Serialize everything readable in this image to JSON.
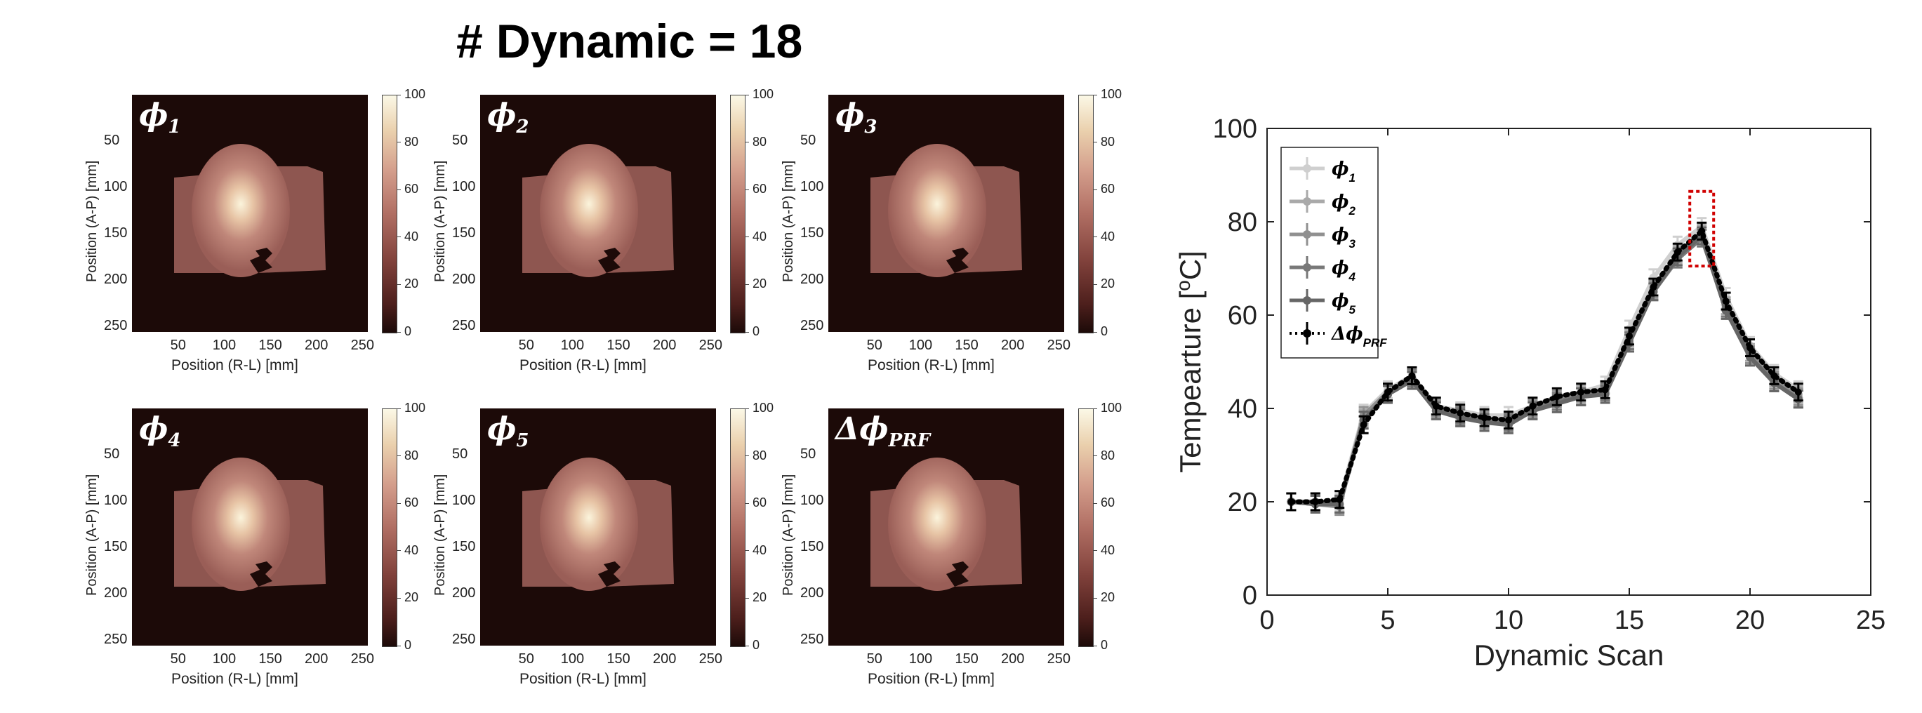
{
  "figure": {
    "title": "# Dynamic = 18"
  },
  "heatmaps": {
    "xlabel": "Position (R-L) [mm]",
    "ylabel": "Position (A-P) [mm]",
    "xticks": [
      "50",
      "100",
      "150",
      "200",
      "250"
    ],
    "yticks": [
      "50",
      "100",
      "150",
      "200",
      "250"
    ],
    "colorbar_ticks": [
      "0",
      "20",
      "40",
      "60",
      "80",
      "100"
    ],
    "colormap": [
      "#1c0a08",
      "#80413b",
      "#d39d8b",
      "#fbf8e6"
    ],
    "panels": [
      {
        "symbol": "ϕ",
        "sub": "1"
      },
      {
        "symbol": "ϕ",
        "sub": "2"
      },
      {
        "symbol": "ϕ",
        "sub": "3"
      },
      {
        "symbol": "ϕ",
        "sub": "4"
      },
      {
        "symbol": "ϕ",
        "sub": "5"
      },
      {
        "symbol": "Δϕ",
        "sub": "PRF"
      }
    ]
  },
  "chart_data": {
    "type": "line",
    "title": "",
    "xlabel": "Dynamic Scan",
    "ylabel": "Tempearture [",
    "ylabel_sup": "o",
    "ylabel_unit": "C]",
    "xlim": [
      0,
      25
    ],
    "ylim": [
      0,
      100
    ],
    "xticks": [
      "0",
      "5",
      "10",
      "15",
      "20",
      "25"
    ],
    "yticks": [
      "0",
      "20",
      "40",
      "60",
      "80",
      "100"
    ],
    "grid": false,
    "legend_position": "top-left",
    "highlight_dynamic": 18,
    "x": [
      1,
      2,
      3,
      4,
      5,
      6,
      7,
      8,
      9,
      10,
      11,
      12,
      13,
      14,
      15,
      16,
      17,
      18,
      19,
      20,
      21,
      22
    ],
    "series": [
      {
        "symbol": "ϕ",
        "sub": "1",
        "color": "#cfcfcf",
        "values": [
          20,
          20,
          20,
          39,
          44,
          47,
          40.5,
          39.5,
          38.5,
          38.5,
          40.5,
          42.5,
          43.5,
          45,
          57,
          68,
          75,
          79,
          64,
          53.5,
          47.5,
          44
        ]
      },
      {
        "symbol": "ϕ",
        "sub": "2",
        "color": "#a9a9a9",
        "values": [
          20,
          19.5,
          19.5,
          38,
          43,
          46.5,
          40,
          38.5,
          37.5,
          37.5,
          40,
          41.5,
          43,
          44,
          55,
          66,
          73,
          77.5,
          62,
          52,
          46.5,
          43
        ]
      },
      {
        "symbol": "ϕ",
        "sub": "3",
        "color": "#909090",
        "values": [
          20,
          19.5,
          19,
          38.5,
          43.5,
          46,
          40,
          38,
          37.5,
          37,
          40,
          42,
          42.5,
          43.5,
          54,
          65.5,
          72.5,
          77,
          61,
          51.5,
          46,
          42.5
        ]
      },
      {
        "symbol": "ϕ",
        "sub": "4",
        "color": "#787878",
        "values": [
          20,
          20,
          19.5,
          37.5,
          43,
          46.5,
          39.5,
          38.5,
          37,
          37,
          39.5,
          41.5,
          42.5,
          43.5,
          54.5,
          65,
          72,
          76.5,
          61.5,
          51,
          45.5,
          42
        ]
      },
      {
        "symbol": "ϕ",
        "sub": "5",
        "color": "#666666",
        "values": [
          20,
          19.5,
          19.5,
          37.5,
          43,
          46,
          39.5,
          38,
          37,
          36.5,
          39.5,
          41,
          42.5,
          43,
          54,
          65,
          72.5,
          77,
          61,
          51,
          45.5,
          42
        ]
      },
      {
        "symbol": "Δϕ",
        "sub": "PRF",
        "color": "#000000",
        "dotted": true,
        "values": [
          20,
          20,
          20.5,
          36.5,
          43.5,
          47,
          40.5,
          39,
          38,
          37.5,
          40.5,
          42.5,
          43.5,
          44,
          55.5,
          66,
          73.5,
          78,
          63,
          53,
          47,
          43.5
        ]
      }
    ]
  }
}
